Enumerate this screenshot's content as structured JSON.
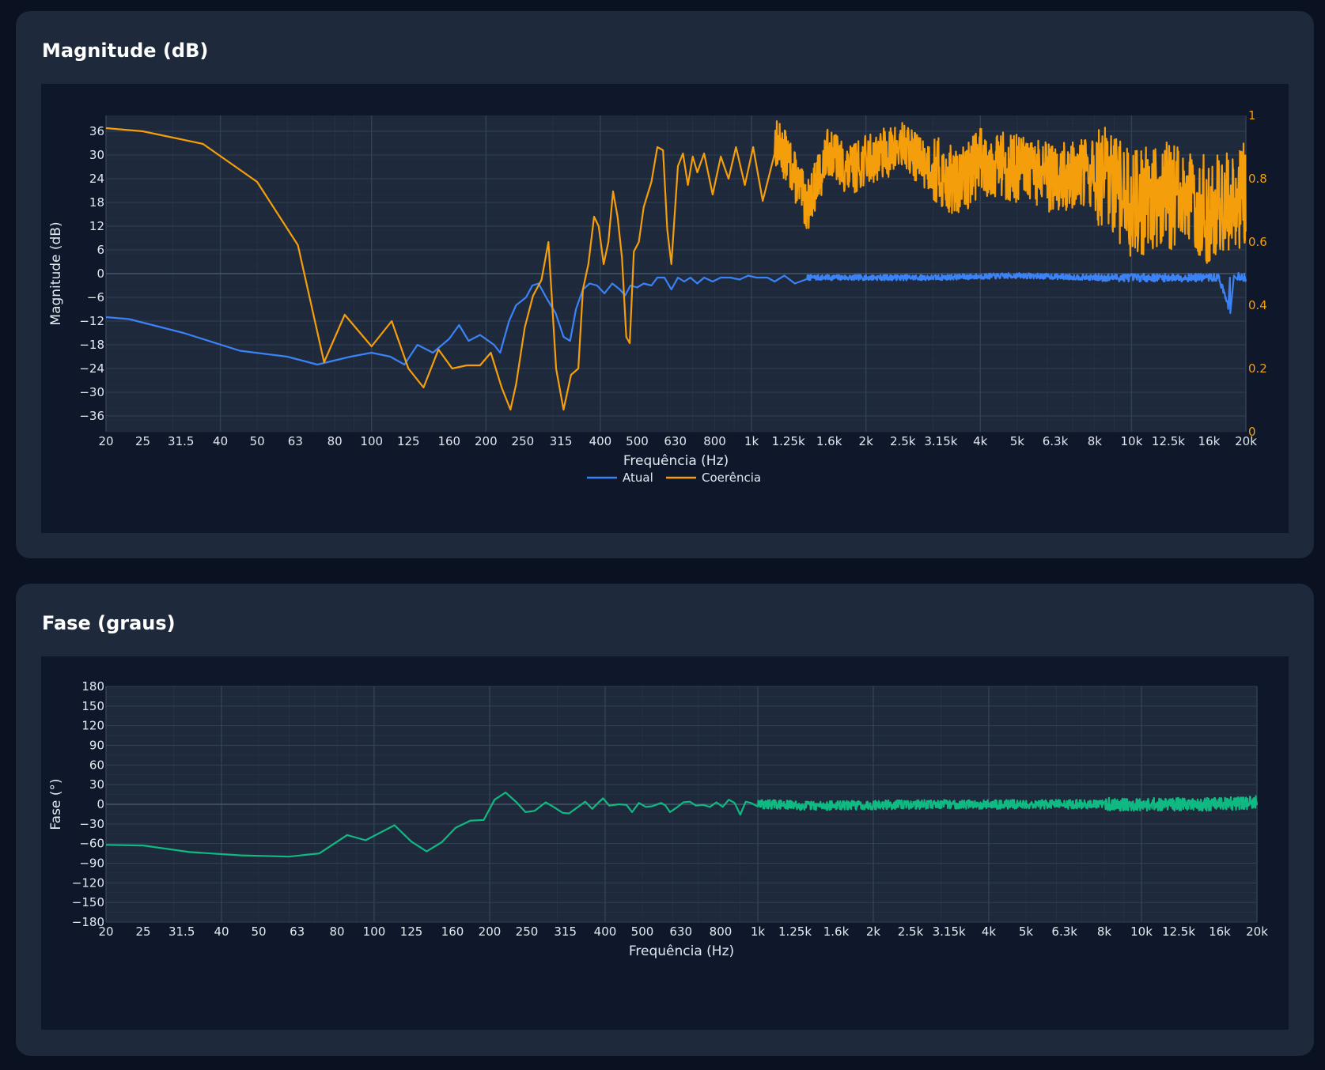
{
  "colors": {
    "page_bg": "#0a1120",
    "card_bg": "#1e293b",
    "plot_area_bg": "#0f172a",
    "plot_bg": "#1e293b",
    "grid": "#334155",
    "tick_text": "#e2e8f0",
    "right_axis_text": "#f59e0b"
  },
  "magnitude_card": {
    "title": "Magnitude (dB)"
  },
  "phase_card": {
    "title": "Fase (graus)"
  },
  "chart_data": [
    {
      "type": "line",
      "title": "Magnitude (dB)",
      "xlabel": "Frequência (Hz)",
      "ylabel": "Magnitude (dB)",
      "xscale": "log",
      "xlim": [
        20,
        20000
      ],
      "ylim": [
        -40,
        40
      ],
      "y2lim": [
        0,
        1
      ],
      "grid": true,
      "legend": "bottom-center",
      "x_ticks": [
        "20",
        "25",
        "31.5",
        "40",
        "50",
        "63",
        "80",
        "100",
        "125",
        "160",
        "200",
        "250",
        "315",
        "400",
        "500",
        "630",
        "800",
        "1k",
        "1.25k",
        "1.6k",
        "2k",
        "2.5k",
        "3.15k",
        "4k",
        "5k",
        "6.3k",
        "8k",
        "10k",
        "12.5k",
        "16k",
        "20k"
      ],
      "y_ticks": [
        "36",
        "30",
        "24",
        "18",
        "12",
        "6",
        "0",
        "−6",
        "−12",
        "−18",
        "−24",
        "−30",
        "−36"
      ],
      "y2_ticks": [
        "0",
        "0.2",
        "0.4",
        "0.6",
        "0.8",
        "1"
      ],
      "series": [
        {
          "name": "Atual",
          "color": "#3b82f6",
          "axis": "left",
          "points": [
            [
              20,
              -11
            ],
            [
              23,
              -11.5
            ],
            [
              32,
              -15
            ],
            [
              45,
              -19.5
            ],
            [
              60,
              -21
            ],
            [
              72,
              -23
            ],
            [
              88,
              -21
            ],
            [
              100,
              -20
            ],
            [
              112,
              -21
            ],
            [
              122,
              -23
            ],
            [
              132,
              -18
            ],
            [
              145,
              -20
            ],
            [
              160,
              -16.5
            ],
            [
              170,
              -13
            ],
            [
              180,
              -17
            ],
            [
              193,
              -15.5
            ],
            [
              210,
              -18
            ],
            [
              218,
              -20
            ],
            [
              230,
              -12
            ],
            [
              240,
              -8
            ],
            [
              255,
              -6
            ],
            [
              265,
              -3
            ],
            [
              275,
              -2.5
            ],
            [
              290,
              -6.5
            ],
            [
              305,
              -10
            ],
            [
              320,
              -16
            ],
            [
              333,
              -17
            ],
            [
              345,
              -9
            ],
            [
              360,
              -4
            ],
            [
              375,
              -2.5
            ],
            [
              392,
              -3
            ],
            [
              410,
              -5
            ],
            [
              430,
              -2.5
            ],
            [
              450,
              -4
            ],
            [
              465,
              -5.5
            ],
            [
              480,
              -3
            ],
            [
              500,
              -3.5
            ],
            [
              520,
              -2.5
            ],
            [
              545,
              -3
            ],
            [
              565,
              -1
            ],
            [
              590,
              -1
            ],
            [
              615,
              -4
            ],
            [
              640,
              -1
            ],
            [
              665,
              -2
            ],
            [
              690,
              -1
            ],
            [
              720,
              -2.5
            ],
            [
              750,
              -1
            ],
            [
              790,
              -2
            ],
            [
              830,
              -1
            ],
            [
              880,
              -1
            ],
            [
              930,
              -1.5
            ],
            [
              980,
              -0.5
            ],
            [
              1030,
              -1
            ],
            [
              1100,
              -1
            ],
            [
              1150,
              -2
            ],
            [
              1220,
              -0.5
            ],
            [
              1300,
              -2.5
            ],
            [
              1400,
              -1
            ],
            [
              1600,
              -1
            ],
            [
              2000,
              -1
            ],
            [
              3000,
              -1
            ],
            [
              5000,
              -0.5
            ],
            [
              8000,
              -1
            ],
            [
              12000,
              -1
            ],
            [
              17000,
              -1
            ],
            [
              18200,
              -10
            ],
            [
              18600,
              -0.5
            ],
            [
              20000,
              -1
            ]
          ]
        },
        {
          "name": "Coerência",
          "color": "#f59e0b",
          "axis": "right",
          "points": [
            [
              20,
              0.96
            ],
            [
              25,
              0.95
            ],
            [
              36,
              0.91
            ],
            [
              50,
              0.79
            ],
            [
              64,
              0.59
            ],
            [
              75,
              0.22
            ],
            [
              85,
              0.37
            ],
            [
              100,
              0.27
            ],
            [
              113,
              0.35
            ],
            [
              125,
              0.2
            ],
            [
              137,
              0.14
            ],
            [
              150,
              0.26
            ],
            [
              163,
              0.2
            ],
            [
              178,
              0.21
            ],
            [
              193,
              0.21
            ],
            [
              206,
              0.25
            ],
            [
              220,
              0.14
            ],
            [
              232,
              0.07
            ],
            [
              240,
              0.15
            ],
            [
              253,
              0.33
            ],
            [
              266,
              0.43
            ],
            [
              280,
              0.48
            ],
            [
              292,
              0.6
            ],
            [
              306,
              0.2
            ],
            [
              320,
              0.07
            ],
            [
              335,
              0.18
            ],
            [
              350,
              0.2
            ],
            [
              360,
              0.45
            ],
            [
              372,
              0.53
            ],
            [
              385,
              0.68
            ],
            [
              396,
              0.65
            ],
            [
              408,
              0.53
            ],
            [
              420,
              0.6
            ],
            [
              432,
              0.76
            ],
            [
              444,
              0.68
            ],
            [
              456,
              0.55
            ],
            [
              468,
              0.3
            ],
            [
              478,
              0.28
            ],
            [
              490,
              0.57
            ],
            [
              505,
              0.6
            ],
            [
              520,
              0.71
            ],
            [
              545,
              0.79
            ],
            [
              565,
              0.9
            ],
            [
              585,
              0.89
            ],
            [
              600,
              0.64
            ],
            [
              615,
              0.53
            ],
            [
              640,
              0.84
            ],
            [
              660,
              0.88
            ],
            [
              680,
              0.78
            ],
            [
              700,
              0.87
            ],
            [
              720,
              0.82
            ],
            [
              750,
              0.88
            ],
            [
              790,
              0.75
            ],
            [
              830,
              0.87
            ],
            [
              870,
              0.8
            ],
            [
              910,
              0.9
            ],
            [
              960,
              0.78
            ],
            [
              1010,
              0.9
            ],
            [
              1070,
              0.73
            ],
            [
              1150,
              0.92
            ],
            [
              1250,
              0.86
            ],
            [
              1400,
              0.71
            ],
            [
              1600,
              0.89
            ],
            [
              1800,
              0.82
            ],
            [
              2000,
              0.86
            ],
            [
              2500,
              0.9
            ],
            [
              3000,
              0.83
            ],
            [
              3500,
              0.78
            ],
            [
              4000,
              0.86
            ],
            [
              5000,
              0.83
            ],
            [
              6300,
              0.8
            ],
            [
              8000,
              0.82
            ],
            [
              10000,
              0.72
            ],
            [
              12500,
              0.75
            ],
            [
              16000,
              0.7
            ],
            [
              18000,
              0.73
            ],
            [
              20000,
              0.75
            ]
          ]
        }
      ]
    },
    {
      "type": "line",
      "title": "Fase (graus)",
      "xlabel": "Frequência (Hz)",
      "ylabel": "Fase (°)",
      "xscale": "log",
      "xlim": [
        20,
        20000
      ],
      "ylim": [
        -180,
        180
      ],
      "grid": true,
      "x_ticks": [
        "20",
        "25",
        "31.5",
        "40",
        "50",
        "63",
        "80",
        "100",
        "125",
        "160",
        "200",
        "250",
        "315",
        "400",
        "500",
        "630",
        "800",
        "1k",
        "1.25k",
        "1.6k",
        "2k",
        "2.5k",
        "3.15k",
        "4k",
        "5k",
        "6.3k",
        "8k",
        "10k",
        "12.5k",
        "16k",
        "20k"
      ],
      "y_ticks": [
        "180",
        "150",
        "120",
        "90",
        "60",
        "30",
        "0",
        "−30",
        "−60",
        "−90",
        "−120",
        "−150",
        "−180"
      ],
      "series": [
        {
          "color": "#10b981",
          "points": [
            [
              20,
              -62
            ],
            [
              25,
              -63
            ],
            [
              33,
              -73
            ],
            [
              45,
              -78
            ],
            [
              60,
              -80
            ],
            [
              72,
              -75
            ],
            [
              85,
              -47
            ],
            [
              95,
              -55
            ],
            [
              113,
              -32
            ],
            [
              125,
              -57
            ],
            [
              137,
              -72
            ],
            [
              150,
              -58
            ],
            [
              163,
              -36
            ],
            [
              178,
              -25
            ],
            [
              193,
              -24
            ],
            [
              206,
              7
            ],
            [
              220,
              18
            ],
            [
              235,
              3
            ],
            [
              248,
              -12
            ],
            [
              262,
              -10
            ],
            [
              280,
              3
            ],
            [
              295,
              -5
            ],
            [
              310,
              -13
            ],
            [
              322,
              -14
            ],
            [
              340,
              -4
            ],
            [
              355,
              4
            ],
            [
              370,
              -7
            ],
            [
              385,
              3
            ],
            [
              395,
              9
            ],
            [
              410,
              -2
            ],
            [
              435,
              0
            ],
            [
              455,
              -1
            ],
            [
              470,
              -12
            ],
            [
              490,
              2
            ],
            [
              510,
              -4
            ],
            [
              530,
              -3
            ],
            [
              560,
              2
            ],
            [
              575,
              -2
            ],
            [
              590,
              -12
            ],
            [
              615,
              -5
            ],
            [
              640,
              3
            ],
            [
              665,
              4
            ],
            [
              690,
              -2
            ],
            [
              720,
              -1
            ],
            [
              750,
              -4
            ],
            [
              780,
              3
            ],
            [
              810,
              -4
            ],
            [
              840,
              7
            ],
            [
              870,
              2
            ],
            [
              900,
              -16
            ],
            [
              930,
              4
            ],
            [
              960,
              2
            ],
            [
              1000,
              0
            ],
            [
              1100,
              0
            ],
            [
              1300,
              -2
            ],
            [
              1500,
              -2
            ],
            [
              2000,
              -1
            ],
            [
              3000,
              0
            ],
            [
              5000,
              0
            ],
            [
              8000,
              0
            ],
            [
              12000,
              0
            ],
            [
              16000,
              0
            ],
            [
              20000,
              3
            ]
          ]
        }
      ]
    }
  ]
}
